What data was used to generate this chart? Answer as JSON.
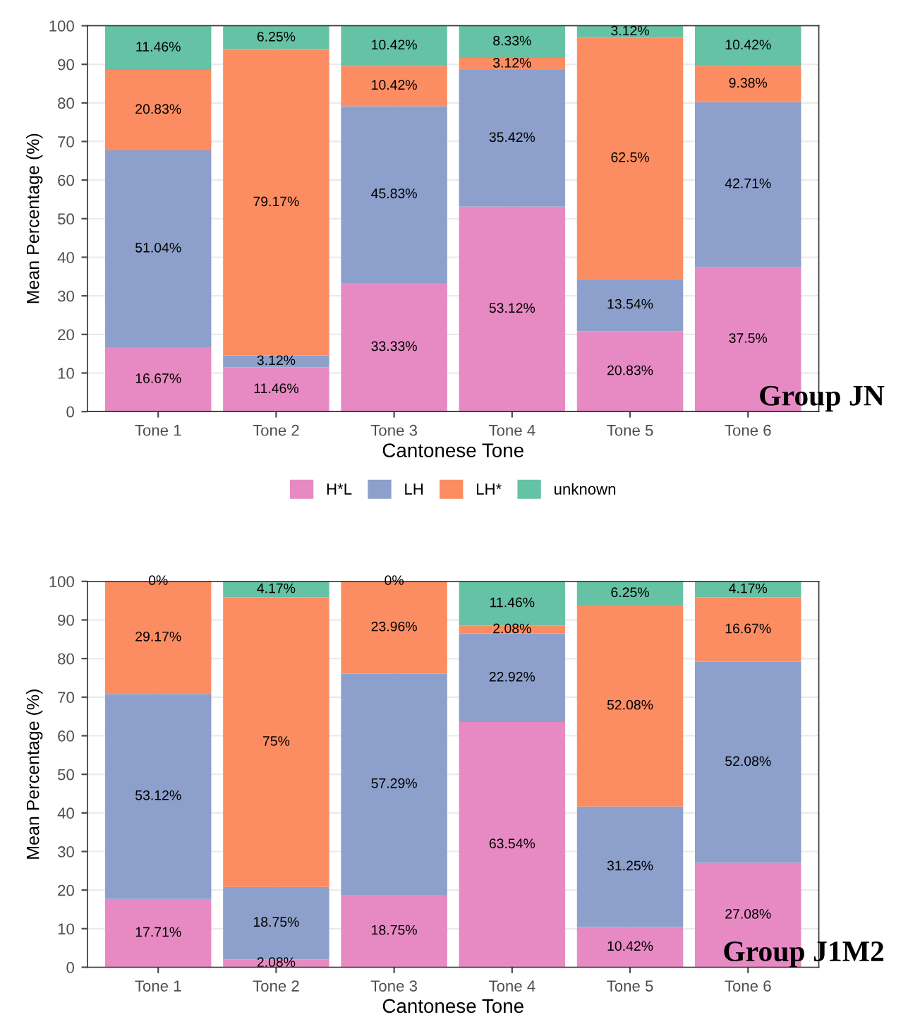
{
  "chart_data": [
    {
      "type": "bar",
      "stacked": true,
      "categories": [
        "Tone 1",
        "Tone 2",
        "Tone 3",
        "Tone 4",
        "Tone 5",
        "Tone 6"
      ],
      "xlabel": "Cantonese Tone",
      "ylabel": "Mean Percentage (%)",
      "ylim": [
        0,
        100
      ],
      "yticks": [
        0,
        10,
        20,
        30,
        40,
        50,
        60,
        70,
        80,
        90,
        100
      ],
      "grid": true,
      "legend": "bottom",
      "annotations": [
        "Group JN"
      ],
      "series": [
        {
          "name": "H*L",
          "color": "#e78ac3",
          "values": [
            16.67,
            11.46,
            33.33,
            53.12,
            20.83,
            37.5
          ],
          "value_labels": [
            "16.67%",
            "11.46%",
            "33.33%",
            "53.12%",
            "20.83%",
            "37.5%"
          ]
        },
        {
          "name": "LH",
          "color": "#8da0cb",
          "values": [
            51.04,
            3.12,
            45.83,
            35.42,
            13.54,
            42.71
          ],
          "value_labels": [
            "51.04%",
            "3.12%",
            "45.83%",
            "35.42%",
            "13.54%",
            "42.71%"
          ]
        },
        {
          "name": "LH*",
          "color": "#fc8d62",
          "values": [
            20.83,
            79.17,
            10.42,
            3.12,
            62.5,
            9.38
          ],
          "value_labels": [
            "20.83%",
            "79.17%",
            "10.42%",
            "3.12%",
            "62.5%",
            "9.38%"
          ]
        },
        {
          "name": "unknown",
          "color": "#66c2a5",
          "values": [
            11.46,
            6.25,
            10.42,
            8.33,
            3.12,
            10.42
          ],
          "value_labels": [
            "11.46%",
            "6.25%",
            "10.42%",
            "8.33%",
            "3.12%",
            "10.42%"
          ]
        }
      ]
    },
    {
      "type": "bar",
      "stacked": true,
      "categories": [
        "Tone 1",
        "Tone 2",
        "Tone 3",
        "Tone 4",
        "Tone 5",
        "Tone 6"
      ],
      "xlabel": "Cantonese Tone",
      "ylabel": "Mean Percentage (%)",
      "ylim": [
        0,
        100
      ],
      "yticks": [
        0,
        10,
        20,
        30,
        40,
        50,
        60,
        70,
        80,
        90,
        100
      ],
      "grid": true,
      "annotations": [
        "Group J1M2"
      ],
      "series": [
        {
          "color": "#e78ac3",
          "values": [
            17.71,
            2.08,
            18.75,
            63.54,
            10.42,
            27.08
          ],
          "value_labels": [
            "17.71%",
            "2.08%",
            "18.75%",
            "63.54%",
            "10.42%",
            "27.08%"
          ]
        },
        {
          "color": "#8da0cb",
          "values": [
            53.12,
            18.75,
            57.29,
            22.92,
            31.25,
            52.08
          ],
          "value_labels": [
            "53.12%",
            "18.75%",
            "57.29%",
            "22.92%",
            "31.25%",
            "52.08%"
          ]
        },
        {
          "color": "#fc8d62",
          "values": [
            29.17,
            75,
            23.96,
            2.08,
            52.08,
            16.67
          ],
          "value_labels": [
            "29.17%",
            "75%",
            "23.96%",
            "2.08%",
            "52.08%",
            "16.67%"
          ]
        },
        {
          "color": "#66c2a5",
          "values": [
            0,
            4.17,
            0,
            11.46,
            6.25,
            4.17
          ],
          "value_labels": [
            "0%",
            "4.17%",
            "0%",
            "11.46%",
            "6.25%",
            "4.17%"
          ]
        }
      ]
    }
  ]
}
